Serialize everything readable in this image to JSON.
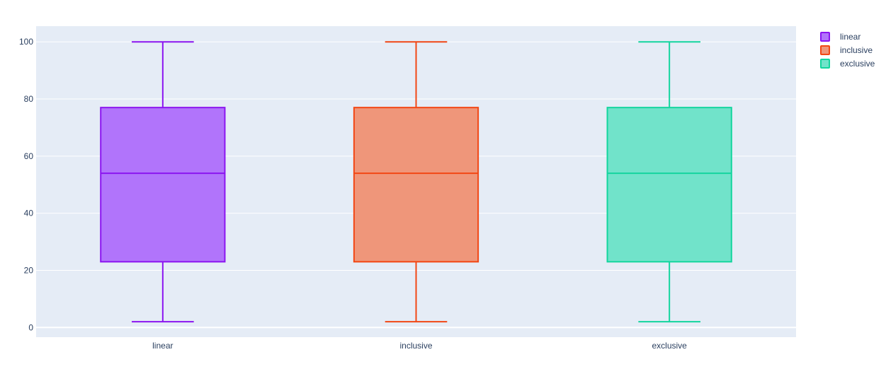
{
  "chart_data": {
    "type": "box",
    "title": "",
    "xlabel": "",
    "ylabel": "",
    "ylim": [
      -3.4,
      105.5
    ],
    "yticks": [
      0,
      20,
      40,
      60,
      80,
      100
    ],
    "grid": true,
    "legend_position": "top-right",
    "categories": [
      "linear",
      "inclusive",
      "exclusive"
    ],
    "series": [
      {
        "name": "linear",
        "color": "#8b15f0",
        "fill": "#b174fb",
        "min": 2,
        "q1": 23,
        "median": 54,
        "q3": 77,
        "max": 100
      },
      {
        "name": "inclusive",
        "color": "#f24715",
        "fill": "#ef967a",
        "min": 2,
        "q1": 23,
        "median": 54,
        "q3": 77,
        "max": 100
      },
      {
        "name": "exclusive",
        "color": "#14d59e",
        "fill": "#71e3ca",
        "min": 2,
        "q1": 23,
        "median": 54,
        "q3": 77,
        "max": 100
      }
    ]
  }
}
